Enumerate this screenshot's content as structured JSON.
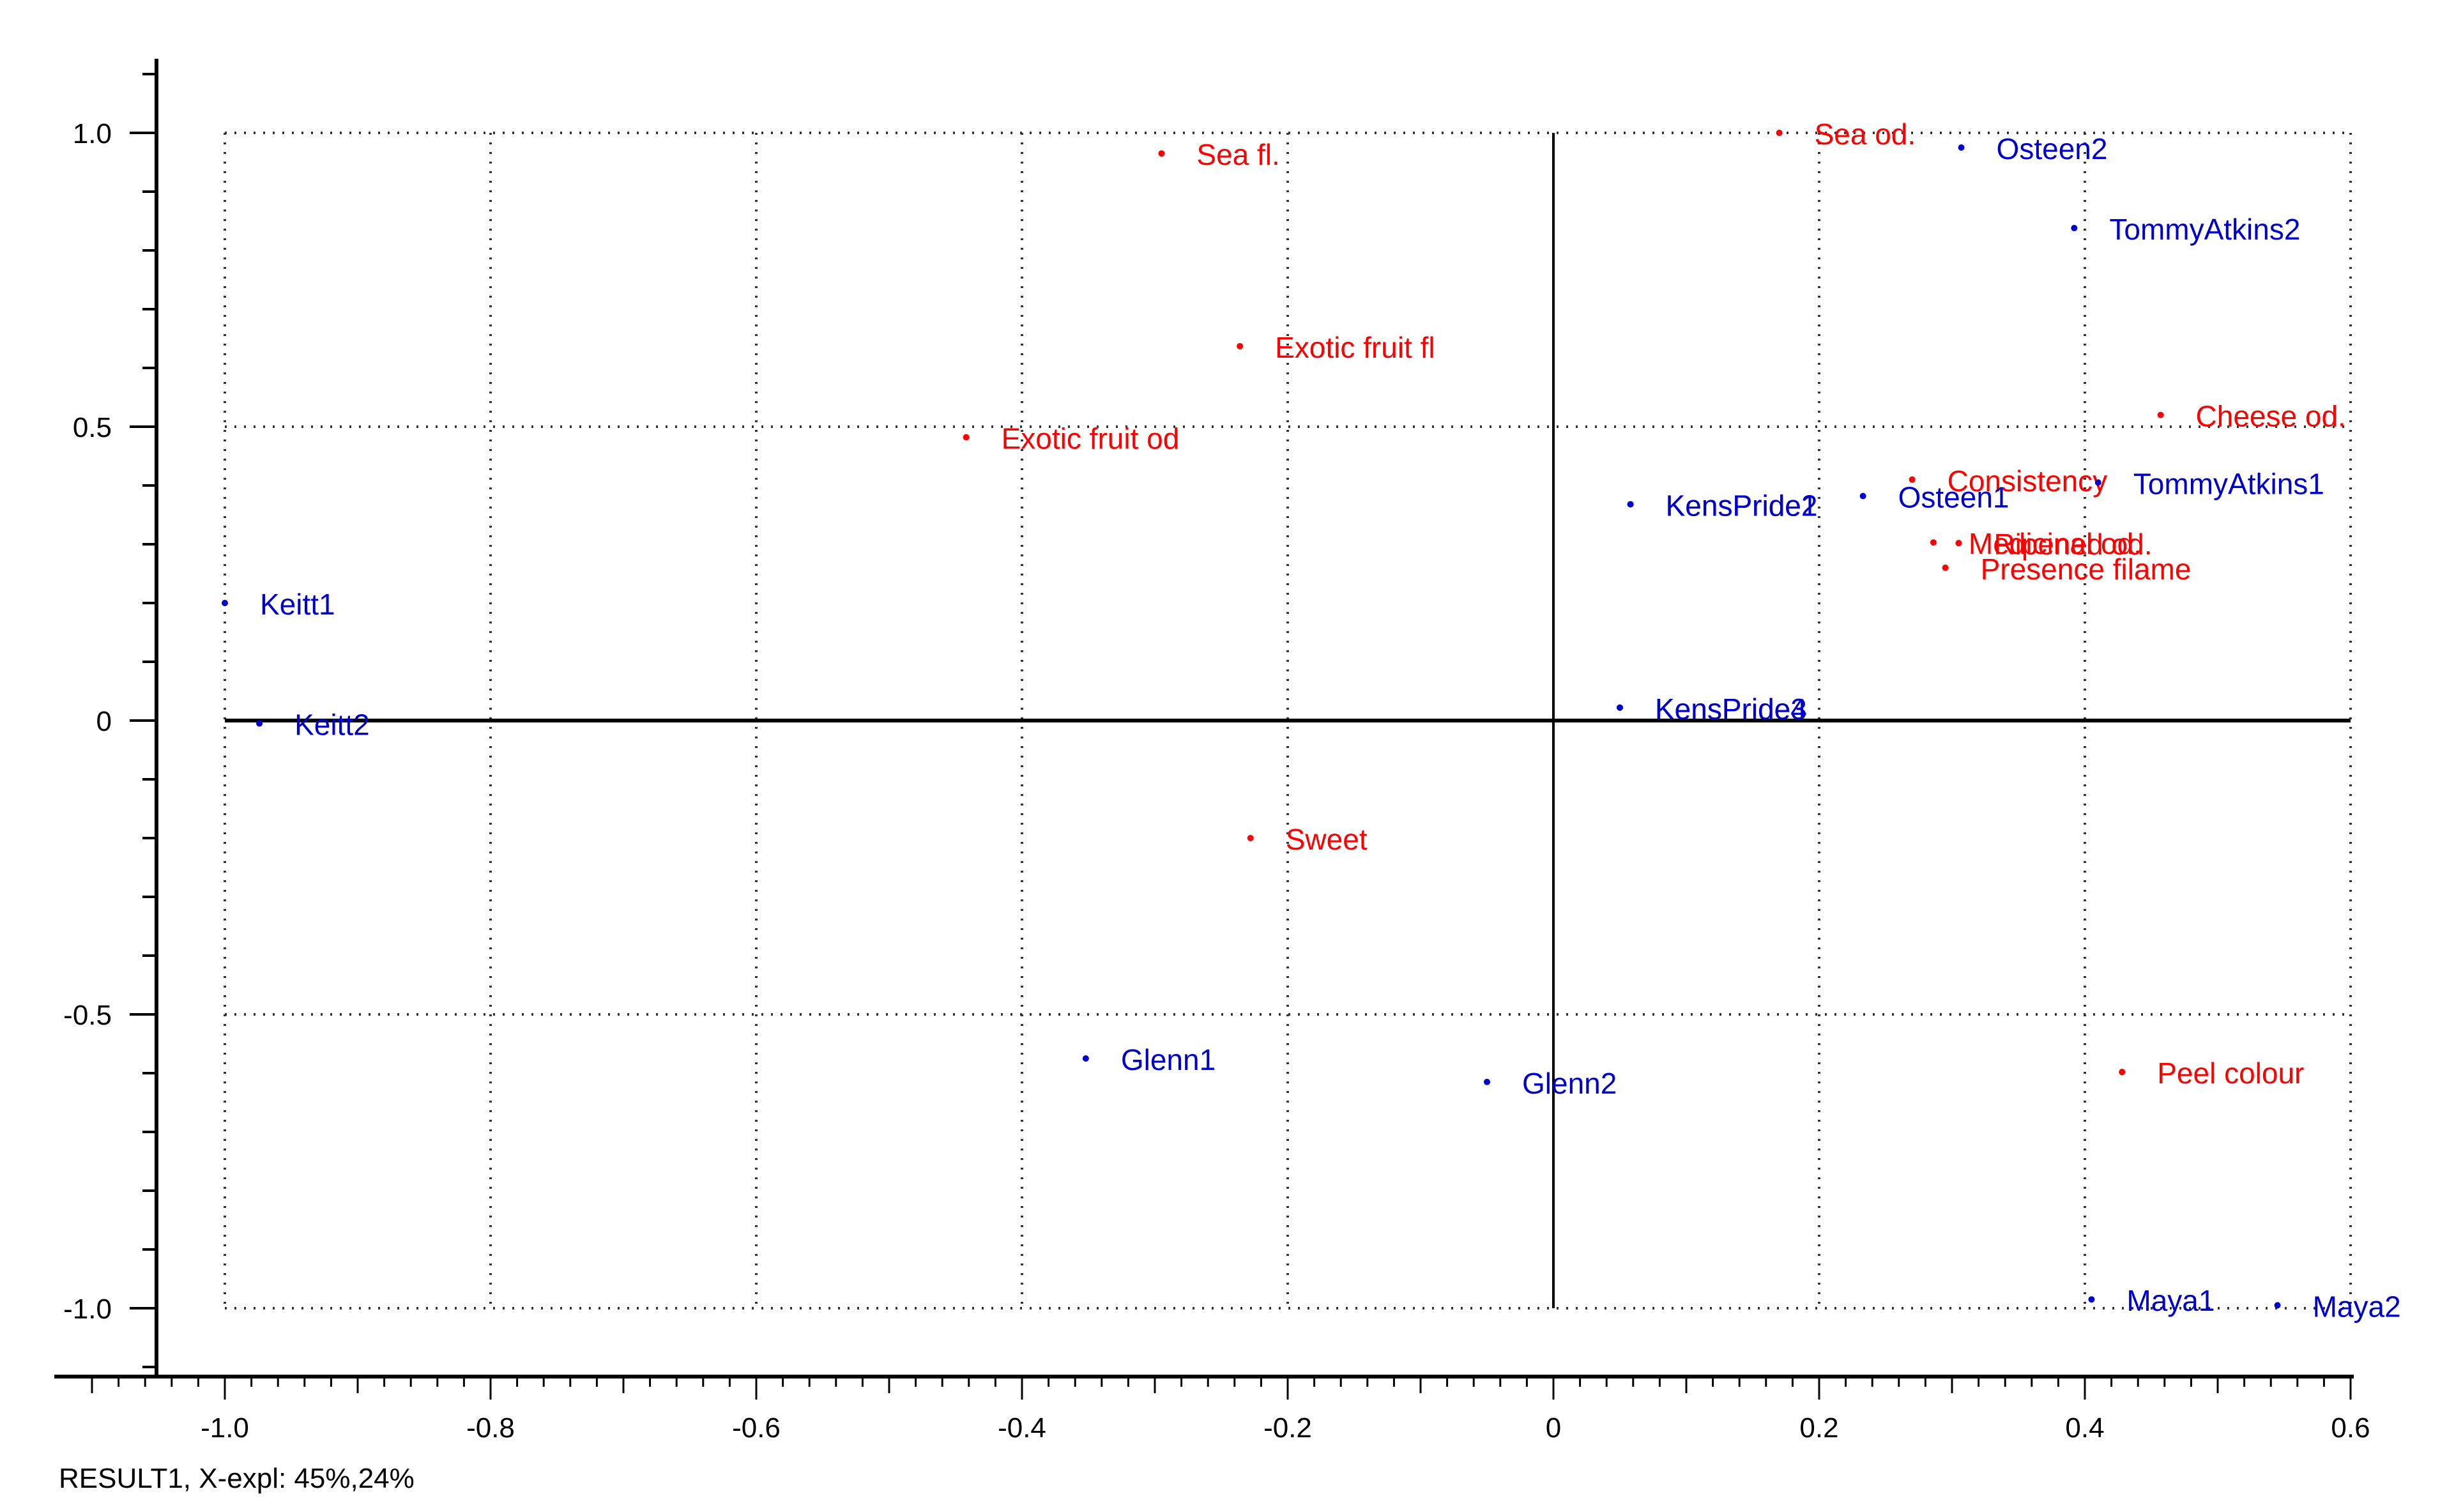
{
  "chart_data": {
    "type": "scatter",
    "title": "",
    "xlabel": "",
    "ylabel": "",
    "xlim": [
      -1.05,
      0.62
    ],
    "ylim": [
      -1.11,
      1.11
    ],
    "x_ticks": [
      -1.0,
      -0.8,
      -0.6,
      -0.4,
      -0.2,
      0,
      0.2,
      0.4,
      0.6
    ],
    "x_tick_labels": [
      "-1.0",
      "-0.8",
      "-0.6",
      "-0.4",
      "-0.2",
      "0",
      "0.2",
      "0.4",
      "0.6"
    ],
    "y_ticks": [
      1.0,
      0.5,
      0,
      -0.5,
      -1.0
    ],
    "y_tick_labels": [
      "1.0",
      "0.5",
      "0",
      "-0.5",
      "-1.0"
    ],
    "grid": "dotted",
    "legend": "none",
    "colors": {
      "attributes": "#ff0000",
      "samples": "#0000cc",
      "axes": "#000000",
      "grid": "#333333"
    },
    "series": [
      {
        "group": "attributes",
        "points": [
          {
            "label": "Sea fl.",
            "x": -0.295,
            "y": 0.965
          },
          {
            "label": "Sea od.",
            "x": 0.17,
            "y": 1.0
          },
          {
            "label": "Exotic fruit fl",
            "x": -0.236,
            "y": 0.637
          },
          {
            "label": "Exotic fruit od",
            "x": -0.442,
            "y": 0.482
          },
          {
            "label": "Cheese od.",
            "x": 0.457,
            "y": 0.52
          },
          {
            "label": "Consistency",
            "x": 0.27,
            "y": 0.41
          },
          {
            "label": "Medicinal od.",
            "x": 0.286,
            "y": 0.303
          },
          {
            "label": "Ripened od.",
            "x": 0.305,
            "y": 0.302
          },
          {
            "label": "Presence filame",
            "x": 0.295,
            "y": 0.26
          },
          {
            "label": "Sweet",
            "x": -0.228,
            "y": -0.2
          },
          {
            "label": "Peel colour",
            "x": 0.428,
            "y": -0.598
          }
        ]
      },
      {
        "group": "samples",
        "points": [
          {
            "label": "Osteen2",
            "x": 0.307,
            "y": 0.975
          },
          {
            "label": "TommyAtkins2",
            "x": 0.392,
            "y": 0.838
          },
          {
            "label": "TommyAtkins1",
            "x": 0.41,
            "y": 0.405
          },
          {
            "label": "KensPride1",
            "x": 0.058,
            "y": 0.368
          },
          {
            "label": "KensPride2",
            "x": 0.058,
            "y": 0.368
          },
          {
            "label": "Osteen1",
            "x": 0.233,
            "y": 0.382
          },
          {
            "label": "KensPride3",
            "x": 0.05,
            "y": 0.022
          },
          {
            "label": "KensPride4",
            "x": 0.05,
            "y": 0.022
          },
          {
            "label": "Keitt1",
            "x": -1.0,
            "y": 0.2
          },
          {
            "label": "Keitt2",
            "x": -0.974,
            "y": -0.005
          },
          {
            "label": "Glenn1",
            "x": -0.352,
            "y": -0.575
          },
          {
            "label": "Glenn2",
            "x": -0.05,
            "y": -0.615
          },
          {
            "label": "Maya1",
            "x": 0.405,
            "y": -0.985
          },
          {
            "label": "Maya2",
            "x": 0.545,
            "y": -0.995
          }
        ]
      }
    ],
    "footer": "RESULT1, X-expl: 45%,24%"
  }
}
